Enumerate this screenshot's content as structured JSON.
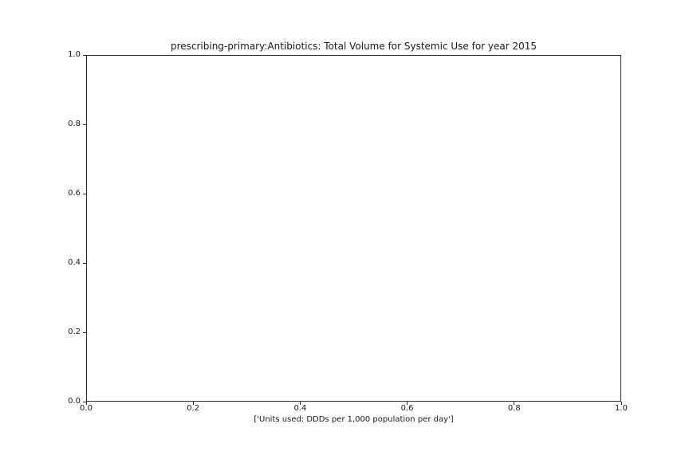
{
  "chart_data": {
    "type": "line",
    "title": "prescribing-primary:Antibiotics: Total Volume for Systemic Use for year 2015",
    "xlabel": "['Units used: DDDs per 1,000 population per day']",
    "ylabel": "",
    "xlim": [
      0.0,
      1.0
    ],
    "ylim": [
      0.0,
      1.0
    ],
    "x_ticks": [
      "0.0",
      "0.2",
      "0.4",
      "0.6",
      "0.8",
      "1.0"
    ],
    "y_ticks": [
      "0.0",
      "0.2",
      "0.4",
      "0.6",
      "0.8",
      "1.0"
    ],
    "series": [],
    "grid": false,
    "legend_position": "none"
  },
  "colors": {
    "background": "#ffffff",
    "text": "#1a1a1a",
    "spine": "#2b2b2b"
  }
}
